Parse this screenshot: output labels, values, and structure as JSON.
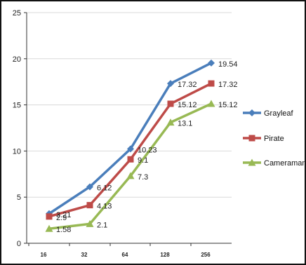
{
  "chart_data": {
    "type": "line",
    "categories": [
      "16",
      "32",
      "64",
      "128",
      "256"
    ],
    "series": [
      {
        "name": "Grayleaf",
        "color": "#4a7ebb",
        "marker": "diamond",
        "values": [
          3.21,
          6.12,
          10.23,
          17.32,
          19.54
        ],
        "labels": [
          "3.21",
          "6.12",
          "10.23",
          "17.32",
          "19.54"
        ]
      },
      {
        "name": "Pirate",
        "color": "#be4b48",
        "marker": "square",
        "values": [
          2.9,
          4.13,
          9.1,
          15.12,
          17.32
        ],
        "labels": [
          "2.9",
          "4.13",
          "9.1",
          "15.12",
          "17.32"
        ]
      },
      {
        "name": "Cameraman",
        "color": "#98b954",
        "marker": "triangle",
        "values": [
          1.58,
          2.1,
          7.3,
          13.1,
          15.12
        ],
        "labels": [
          "1.58",
          "2.1",
          "7.3",
          "13.1",
          "15.12"
        ]
      }
    ],
    "y_ticks": [
      "0",
      "5",
      "10",
      "15",
      "20",
      "25"
    ],
    "ylim": [
      0,
      25
    ],
    "gridlines": true,
    "legend_position": "right"
  }
}
